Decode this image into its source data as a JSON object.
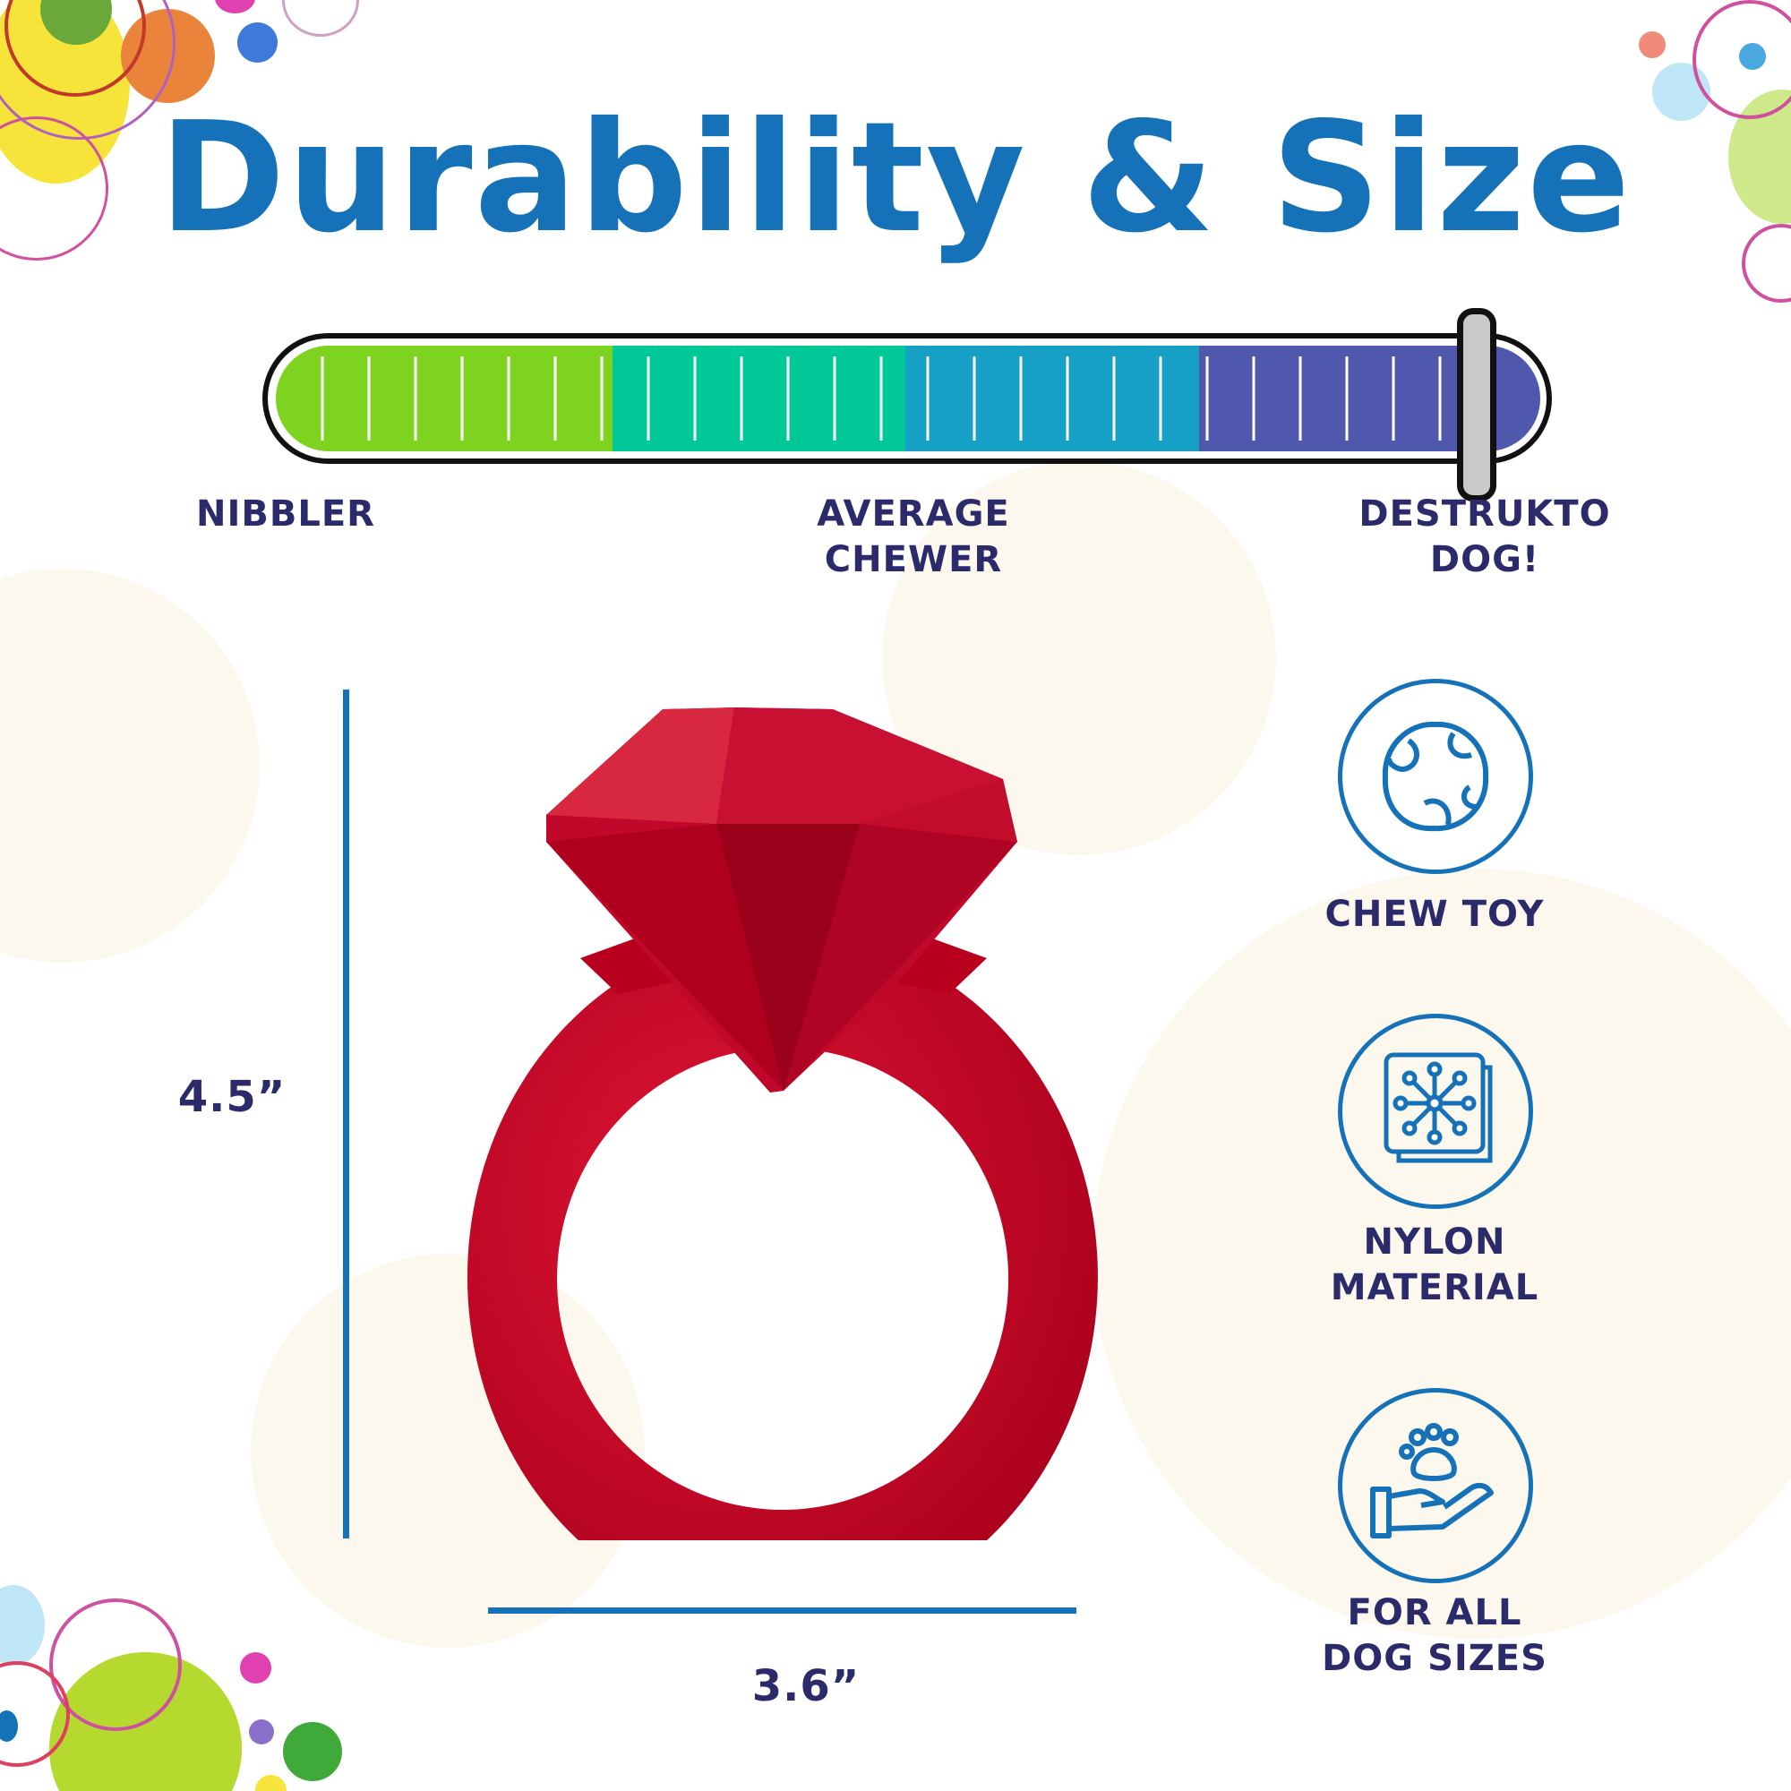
{
  "title": "Durability & Size",
  "durability_meter": {
    "level_percent": 95,
    "segment_colors": [
      "#7ed321",
      "#00c896",
      "#17a0c6",
      "#5058ae"
    ],
    "labels": {
      "low": "NIBBLER",
      "mid_line1": "AVERAGE",
      "mid_line2": "CHEWER",
      "high_line1": "DESTRUKTO",
      "high_line2": "DOG!"
    }
  },
  "dimensions": {
    "height": "4.5”",
    "width": "3.6”"
  },
  "features": [
    {
      "icon": "ball-icon",
      "line1": "CHEW TOY",
      "line2": ""
    },
    {
      "icon": "nylon-material-icon",
      "line1": "NYLON",
      "line2": "MATERIAL"
    },
    {
      "icon": "hand-paw-icon",
      "line1": "FOR ALL",
      "line2": "DOG SIZES"
    }
  ],
  "colors": {
    "brand_blue": "#1672b8",
    "label_navy": "#2b2a6b",
    "product_red": "#c8102e"
  }
}
